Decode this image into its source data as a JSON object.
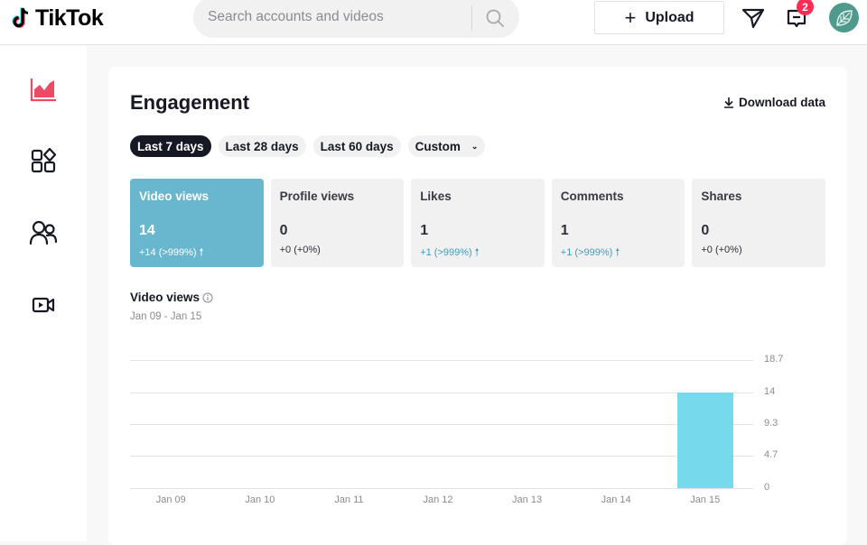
{
  "topbar": {
    "logo_text": "TikTok",
    "search_placeholder": "Search accounts and videos",
    "upload_label": "Upload",
    "notification_count": "2"
  },
  "sidebar": {
    "items": [
      {
        "name": "analytics",
        "active": true
      },
      {
        "name": "content-apps",
        "active": false
      },
      {
        "name": "followers",
        "active": false
      },
      {
        "name": "live",
        "active": false
      }
    ]
  },
  "main": {
    "title": "Engagement",
    "download_label": "Download data",
    "date_filters": [
      {
        "label": "Last 7 days",
        "active": true
      },
      {
        "label": "Last 28 days",
        "active": false
      },
      {
        "label": "Last 60 days",
        "active": false
      },
      {
        "label": "Custom",
        "active": false
      }
    ],
    "metrics": [
      {
        "label": "Video views",
        "value": "14",
        "delta": "+14 (>999%)",
        "trend": "up",
        "active": true
      },
      {
        "label": "Profile views",
        "value": "0",
        "delta": "+0 (+0%)",
        "trend": "flat",
        "active": false
      },
      {
        "label": "Likes",
        "value": "1",
        "delta": "+1 (>999%)",
        "trend": "up",
        "active": false
      },
      {
        "label": "Comments",
        "value": "1",
        "delta": "+1 (>999%)",
        "trend": "up",
        "active": false
      },
      {
        "label": "Shares",
        "value": "0",
        "delta": "+0 (+0%)",
        "trend": "flat",
        "active": false
      }
    ],
    "chart_title": "Video views",
    "chart_range": "Jan 09 - Jan 15"
  },
  "colors": {
    "accent_active_card": "#69b6cf",
    "bar": "#77d9ec",
    "brand_red": "#fe2c55",
    "trend_up": "#3e9cbf"
  },
  "chart_data": {
    "type": "bar",
    "title": "Video views",
    "subtitle": "Jan 09 - Jan 15",
    "categories": [
      "Jan 09",
      "Jan 10",
      "Jan 11",
      "Jan 12",
      "Jan 13",
      "Jan 14",
      "Jan 15"
    ],
    "values": [
      0,
      0,
      0,
      0,
      0,
      0,
      14
    ],
    "yticks": [
      "18.7",
      "14",
      "9.3",
      "4.7",
      "0"
    ],
    "ylim": [
      0,
      18.7
    ],
    "xlabel": "",
    "ylabel": "",
    "grid": true,
    "y_axis_position": "right"
  }
}
